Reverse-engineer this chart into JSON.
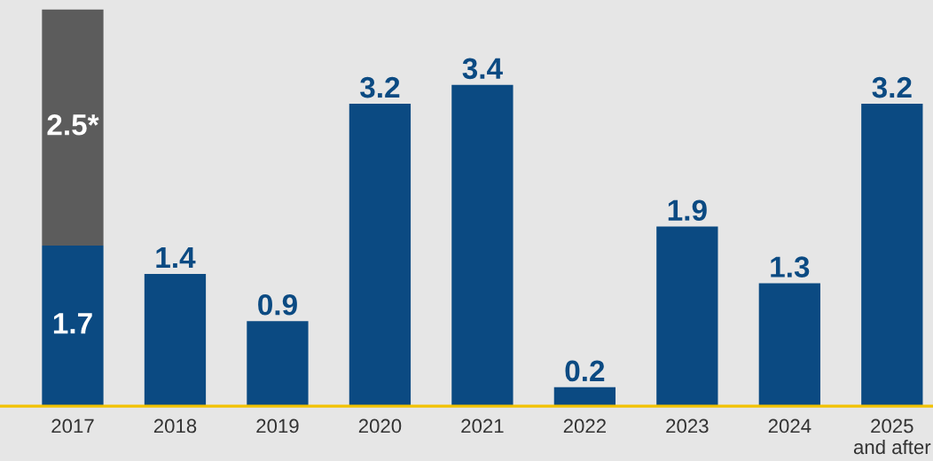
{
  "chart_data": {
    "type": "bar",
    "stacked": true,
    "categories": [
      "2017",
      "2018",
      "2019",
      "2020",
      "2021",
      "2022",
      "2023",
      "2024",
      "2025\nand after"
    ],
    "series": [
      {
        "color": "#0b4a82",
        "values": [
          1.7,
          1.4,
          0.9,
          3.2,
          3.4,
          0.2,
          1.9,
          1.3,
          3.2
        ],
        "value_labels": [
          "1.7",
          "1.4",
          "0.9",
          "3.2",
          "3.4",
          "0.2",
          "1.9",
          "1.3",
          "3.2"
        ]
      },
      {
        "color": "#5c5c5c",
        "values": [
          2.5,
          null,
          null,
          null,
          null,
          null,
          null,
          null,
          null
        ],
        "value_labels": [
          "2.5*",
          null,
          null,
          null,
          null,
          null,
          null,
          null,
          null
        ]
      }
    ],
    "ylim": [
      0,
      4.2
    ],
    "tick_labels": "x",
    "grid": false,
    "legend": false
  }
}
